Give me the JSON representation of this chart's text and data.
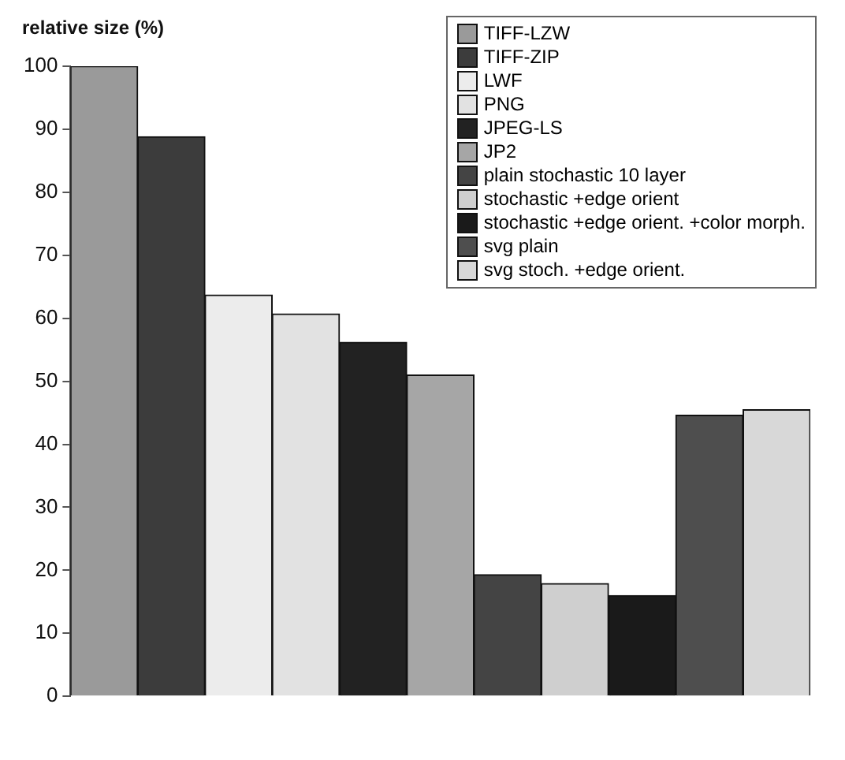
{
  "chart_data": {
    "type": "bar",
    "ylabel": "relative size (%)",
    "categories": [
      null
    ],
    "series": [
      {
        "name": "TIFF-LZW",
        "color": "#9a9a9a",
        "values": [
          100
        ]
      },
      {
        "name": "TIFF-ZIP",
        "color": "#3c3c3c",
        "values": [
          88.8
        ]
      },
      {
        "name": "LWF",
        "color": "#ececec",
        "values": [
          63.7
        ]
      },
      {
        "name": "PNG",
        "color": "#e2e2e2",
        "values": [
          60.7
        ]
      },
      {
        "name": "JPEG-LS",
        "color": "#222222",
        "values": [
          56.2
        ]
      },
      {
        "name": "JP2",
        "color": "#a6a6a6",
        "values": [
          51
        ]
      },
      {
        "name": "plain stochastic 10 layer",
        "color": "#444444",
        "values": [
          19.3
        ]
      },
      {
        "name": "stochastic +edge orient",
        "color": "#cfcfcf",
        "values": [
          17.9
        ]
      },
      {
        "name": "stochastic +edge orient. +color morph.",
        "color": "#1a1a1a",
        "values": [
          16
        ]
      },
      {
        "name": "svg plain",
        "color": "#4e4e4e",
        "values": [
          44.6
        ]
      },
      {
        "name": "svg stoch. +edge orient.",
        "color": "#d8d8d8",
        "values": [
          45.5
        ]
      }
    ],
    "ylim": [
      0,
      100
    ],
    "yticks": [
      0,
      10,
      20,
      30,
      40,
      50,
      60,
      70,
      80,
      90,
      100
    ],
    "legend": "top right"
  }
}
